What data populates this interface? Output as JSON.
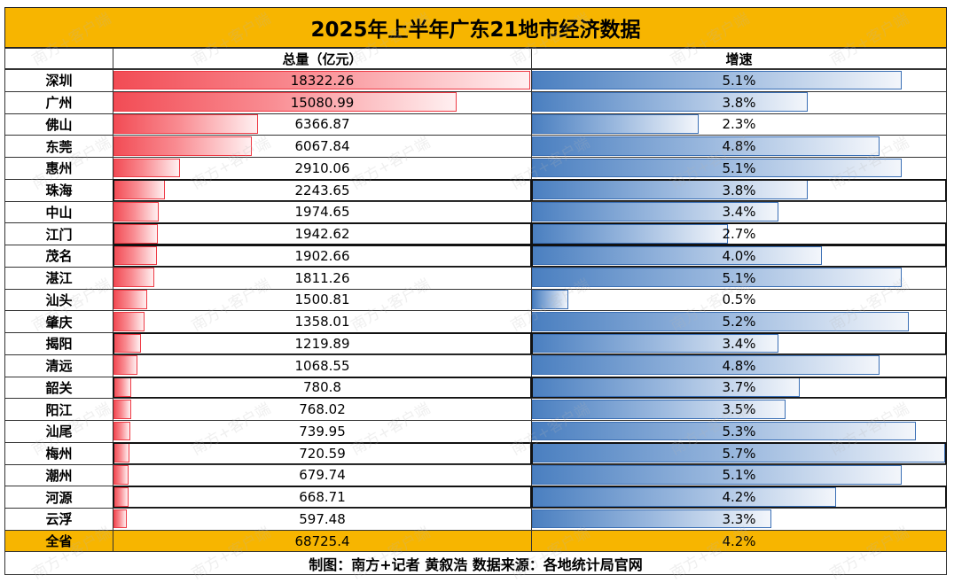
{
  "title": "2025年上半年广东21地市经济数据",
  "headers": {
    "total": "总量（亿元）",
    "growth": "增速"
  },
  "colors": {
    "header_fill": "#f7b500",
    "total_bar": "#f24c55",
    "growth_bar": "#4a7fc0"
  },
  "chart_data": {
    "type": "bar",
    "categories": [
      "深圳",
      "广州",
      "佛山",
      "东莞",
      "惠州",
      "珠海",
      "中山",
      "江门",
      "茂名",
      "湛江",
      "汕头",
      "肇庆",
      "揭阳",
      "清远",
      "韶关",
      "阳江",
      "汕尾",
      "梅州",
      "潮州",
      "河源",
      "云浮"
    ],
    "series": [
      {
        "name": "总量（亿元）",
        "values": [
          18322.26,
          15080.99,
          6366.87,
          6067.84,
          2910.06,
          2243.65,
          1974.65,
          1942.62,
          1902.66,
          1811.26,
          1500.81,
          1358.01,
          1219.89,
          1068.55,
          780.8,
          768.02,
          739.95,
          720.59,
          679.74,
          668.71,
          597.48
        ]
      },
      {
        "name": "增速",
        "values": [
          5.1,
          3.8,
          2.3,
          4.8,
          5.1,
          3.8,
          3.4,
          2.7,
          4.0,
          5.1,
          0.5,
          5.2,
          3.4,
          4.8,
          3.7,
          3.5,
          5.3,
          5.7,
          5.1,
          4.2,
          3.3
        ]
      }
    ],
    "total_labels": [
      "18322.26",
      "15080.99",
      "6366.87",
      "6067.84",
      "2910.06",
      "2243.65",
      "1974.65",
      "1942.62",
      "1902.66",
      "1811.26",
      "1500.81",
      "1358.01",
      "1219.89",
      "1068.55",
      "780.8",
      "768.02",
      "739.95",
      "720.59",
      "679.74",
      "668.71",
      "597.48"
    ],
    "growth_labels": [
      "5.1%",
      "3.8%",
      "2.3%",
      "4.8%",
      "5.1%",
      "3.8%",
      "3.4%",
      "2.7%",
      "4.0%",
      "5.1%",
      "0.5%",
      "5.2%",
      "3.4%",
      "4.8%",
      "3.7%",
      "3.5%",
      "5.3%",
      "5.7%",
      "5.1%",
      "4.2%",
      "3.3%"
    ],
    "highlighted_rows": [
      "珠海",
      "江门",
      "茂名",
      "揭阳",
      "韶关",
      "梅州",
      "河源"
    ]
  },
  "summary": {
    "label": "全省",
    "total": "68725.4",
    "growth": "4.2%"
  },
  "footer": "制图：南方+记者  黄叙浩  数据来源：各地统计局官网",
  "watermark": "南方+客户端"
}
